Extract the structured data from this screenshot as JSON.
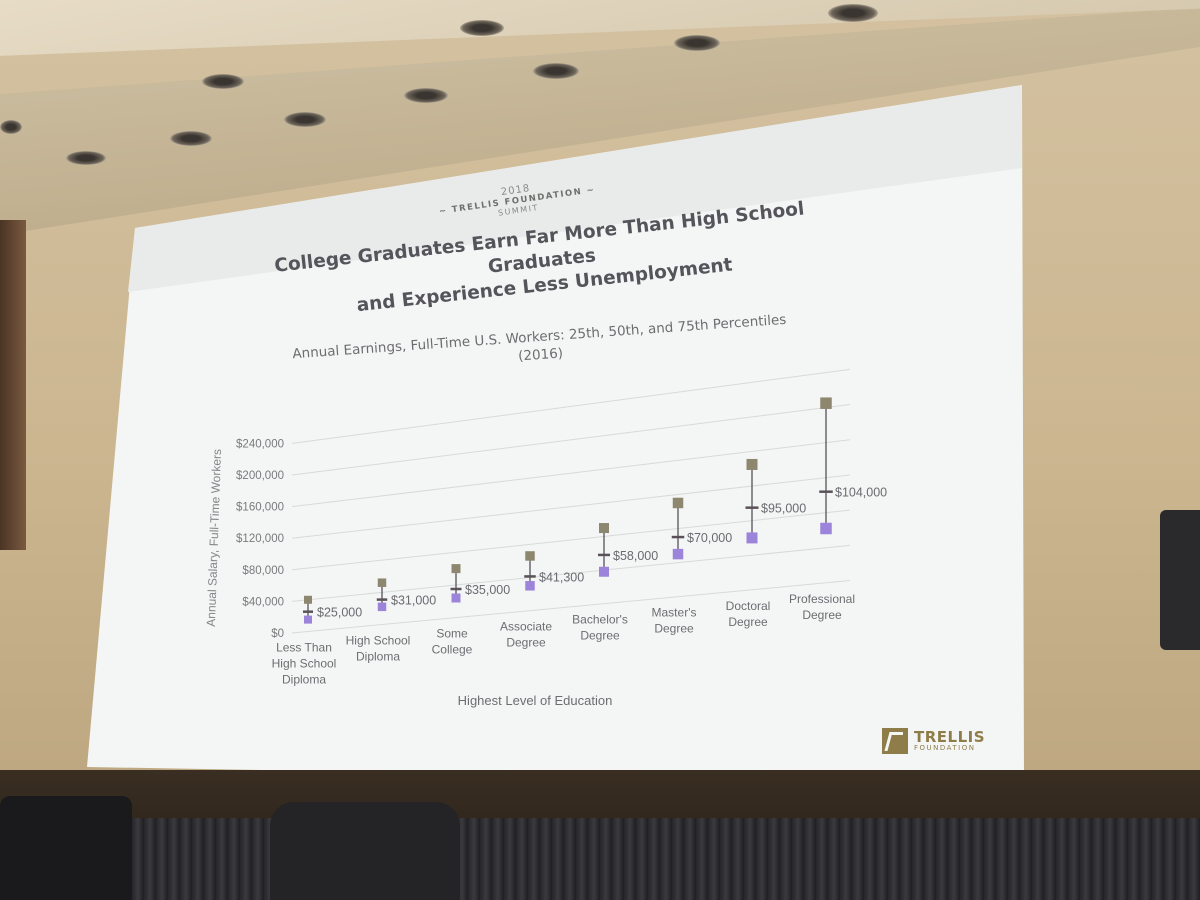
{
  "slide": {
    "event_year": "2018",
    "event_org": "~ TRELLIS FOUNDATION ~",
    "event_sub": "SUMMIT",
    "title_line1": "College Graduates Earn Far More Than High School Graduates",
    "title_line2": "and Experience Less Unemployment",
    "subtitle_line1": "Annual Earnings, Full-Time U.S. Workers: 25th, 50th, and 75th Percentiles",
    "subtitle_line2": "(2016)",
    "logo_word": "TRELLIS",
    "logo_sub": "FOUNDATION"
  },
  "chart_data": {
    "type": "scatter",
    "ylabel": "Annual Salary, Full-Time Workers",
    "xlabel": "Highest Level of Education",
    "ylim": [
      0,
      240000
    ],
    "yticks": [
      {
        "value": 0,
        "label": "$0"
      },
      {
        "value": 40000,
        "label": "$40,000"
      },
      {
        "value": 80000,
        "label": "$80,000"
      },
      {
        "value": 120000,
        "label": "$120,000"
      },
      {
        "value": 160000,
        "label": "$160,000"
      },
      {
        "value": 200000,
        "label": "$200,000"
      },
      {
        "value": 240000,
        "label": "$240,000"
      }
    ],
    "grid": true,
    "categories": [
      {
        "lines": [
          "Less Than",
          "High School",
          "Diploma"
        ],
        "p25": 15000,
        "p50": 25000,
        "p75": 40000,
        "label": "$25,000"
      },
      {
        "lines": [
          "High School",
          "Diploma"
        ],
        "p25": 22000,
        "p50": 31000,
        "p75": 52000,
        "label": "$31,000"
      },
      {
        "lines": [
          "Some",
          "College"
        ],
        "p25": 24000,
        "p50": 35000,
        "p75": 60000,
        "label": "$35,000"
      },
      {
        "lines": [
          "Associate",
          "Degree"
        ],
        "p25": 30000,
        "p50": 41300,
        "p75": 66000,
        "label": "$41,300"
      },
      {
        "lines": [
          "Bachelor's",
          "Degree"
        ],
        "p25": 38000,
        "p50": 58000,
        "p75": 90000,
        "label": "$58,000"
      },
      {
        "lines": [
          "Master's",
          "Degree"
        ],
        "p25": 50000,
        "p50": 70000,
        "p75": 110000,
        "label": "$70,000"
      },
      {
        "lines": [
          "Doctoral",
          "Degree"
        ],
        "p25": 60000,
        "p50": 95000,
        "p75": 145000,
        "label": "$95,000"
      },
      {
        "lines": [
          "Professional",
          "Degree"
        ],
        "p25": 62000,
        "p50": 104000,
        "p75": 205000,
        "label": "$104,000"
      }
    ],
    "colors": {
      "p25": "#9b84d9",
      "p50": "#5a5258",
      "p75": "#8e8770",
      "grid": "#d7dad9",
      "axis_text": "#7a7a7e"
    }
  }
}
